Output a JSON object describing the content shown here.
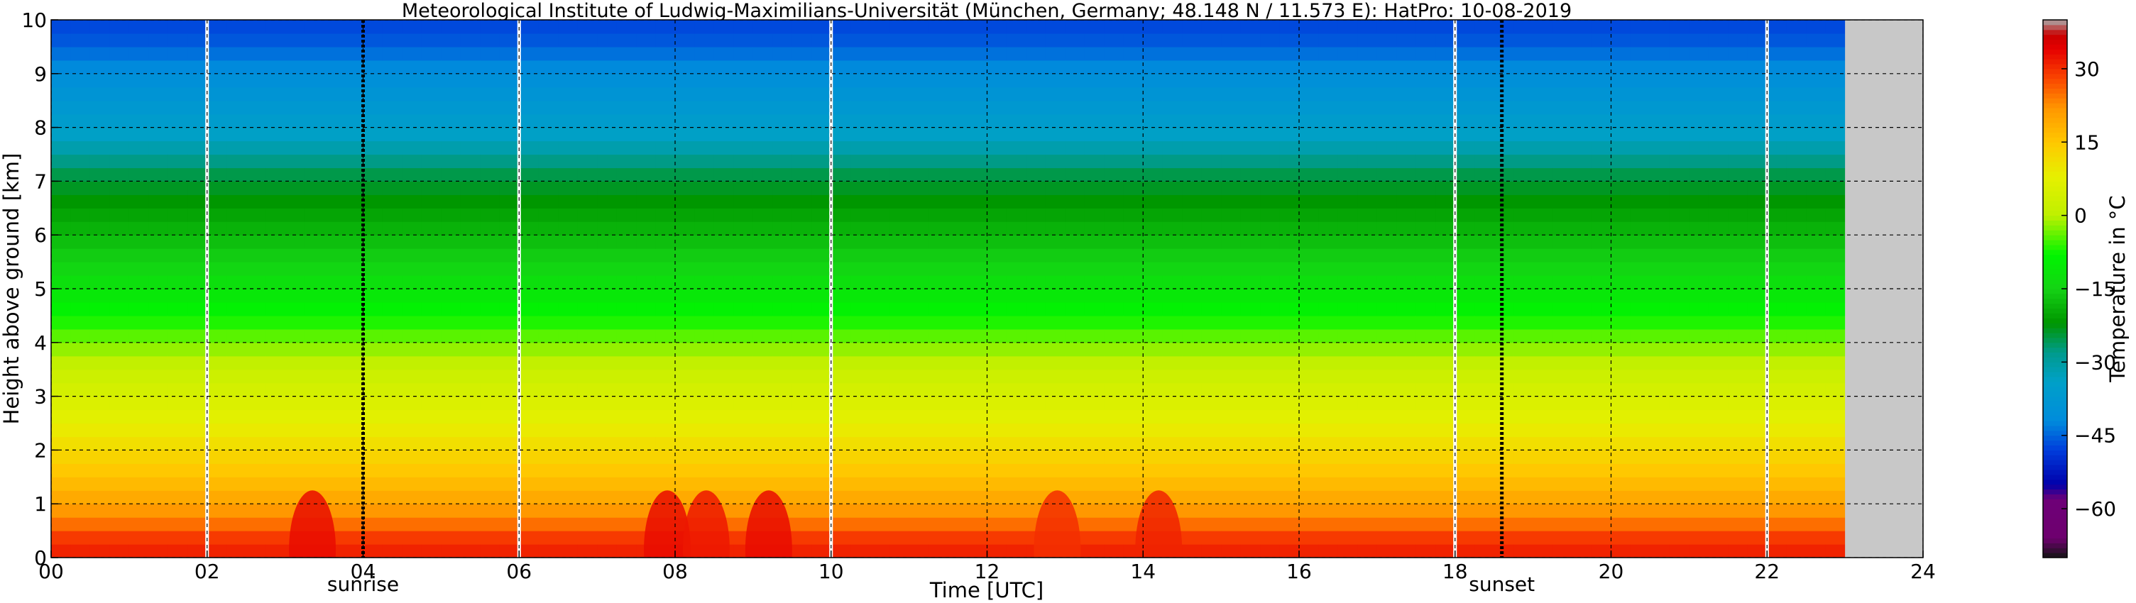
{
  "chart_data": {
    "type": "heatmap",
    "title": "Meteorological Institute of Ludwig-Maximilians-Universität (München, Germany; 48.148 N / 11.573 E):    HatPro: 10-08-2019",
    "xlabel": "Time [UTC]",
    "ylabel": "Height above ground [km]",
    "xlim": [
      0,
      24
    ],
    "ylim": [
      0,
      10
    ],
    "x_ticks": [
      0,
      2,
      4,
      6,
      8,
      10,
      12,
      14,
      16,
      18,
      20,
      22,
      24
    ],
    "x_tick_labels": [
      "00",
      "02",
      "04",
      "06",
      "08",
      "10",
      "12",
      "14",
      "16",
      "18",
      "20",
      "22",
      "24"
    ],
    "y_ticks": [
      0,
      1,
      2,
      3,
      4,
      5,
      6,
      7,
      8,
      9,
      10
    ],
    "y_tick_labels": [
      "0",
      "1",
      "2",
      "3",
      "4",
      "5",
      "6",
      "7",
      "8",
      "9",
      "10"
    ],
    "grid": true,
    "data_end_time": 23.0,
    "gaps": [
      2.0,
      6.0,
      10.0,
      18.0,
      22.0
    ],
    "markers": [
      {
        "label": "sunrise",
        "time": 4.0
      },
      {
        "label": "sunset",
        "time": 18.6
      }
    ],
    "height_km": [
      0.25,
      0.75,
      1.25,
      1.75,
      2.5,
      3.5,
      4.5,
      5.5,
      6.5,
      7.25,
      7.75,
      8.5,
      9.25,
      9.75
    ],
    "temperature_profile_c": [
      31,
      23,
      18,
      14,
      8,
      2,
      -8,
      -15,
      -21,
      -26,
      -33,
      -38,
      -43,
      -47
    ],
    "warm_events": [
      {
        "time": 3.35,
        "peak_c": 33
      },
      {
        "time": 7.9,
        "peak_c": 33
      },
      {
        "time": 8.4,
        "peak_c": 32
      },
      {
        "time": 9.2,
        "peak_c": 33
      },
      {
        "time": 12.9,
        "peak_c": 30
      },
      {
        "time": 14.2,
        "peak_c": 31
      }
    ],
    "colorbar": {
      "label": "Temperature in °C",
      "range": [
        -70,
        40
      ],
      "ticks": [
        30,
        15,
        0,
        -15,
        -30,
        -45,
        -60
      ],
      "tick_labels": [
        "30",
        "15",
        "0",
        "−15",
        "−30",
        "−45",
        "−60"
      ]
    }
  },
  "markers_text": {
    "sunrise": "sunrise",
    "sunset": "sunset"
  },
  "colors": {
    "no_data": "#c8c8c8",
    "gap": "#ffffff",
    "marker_line": "#000000"
  }
}
